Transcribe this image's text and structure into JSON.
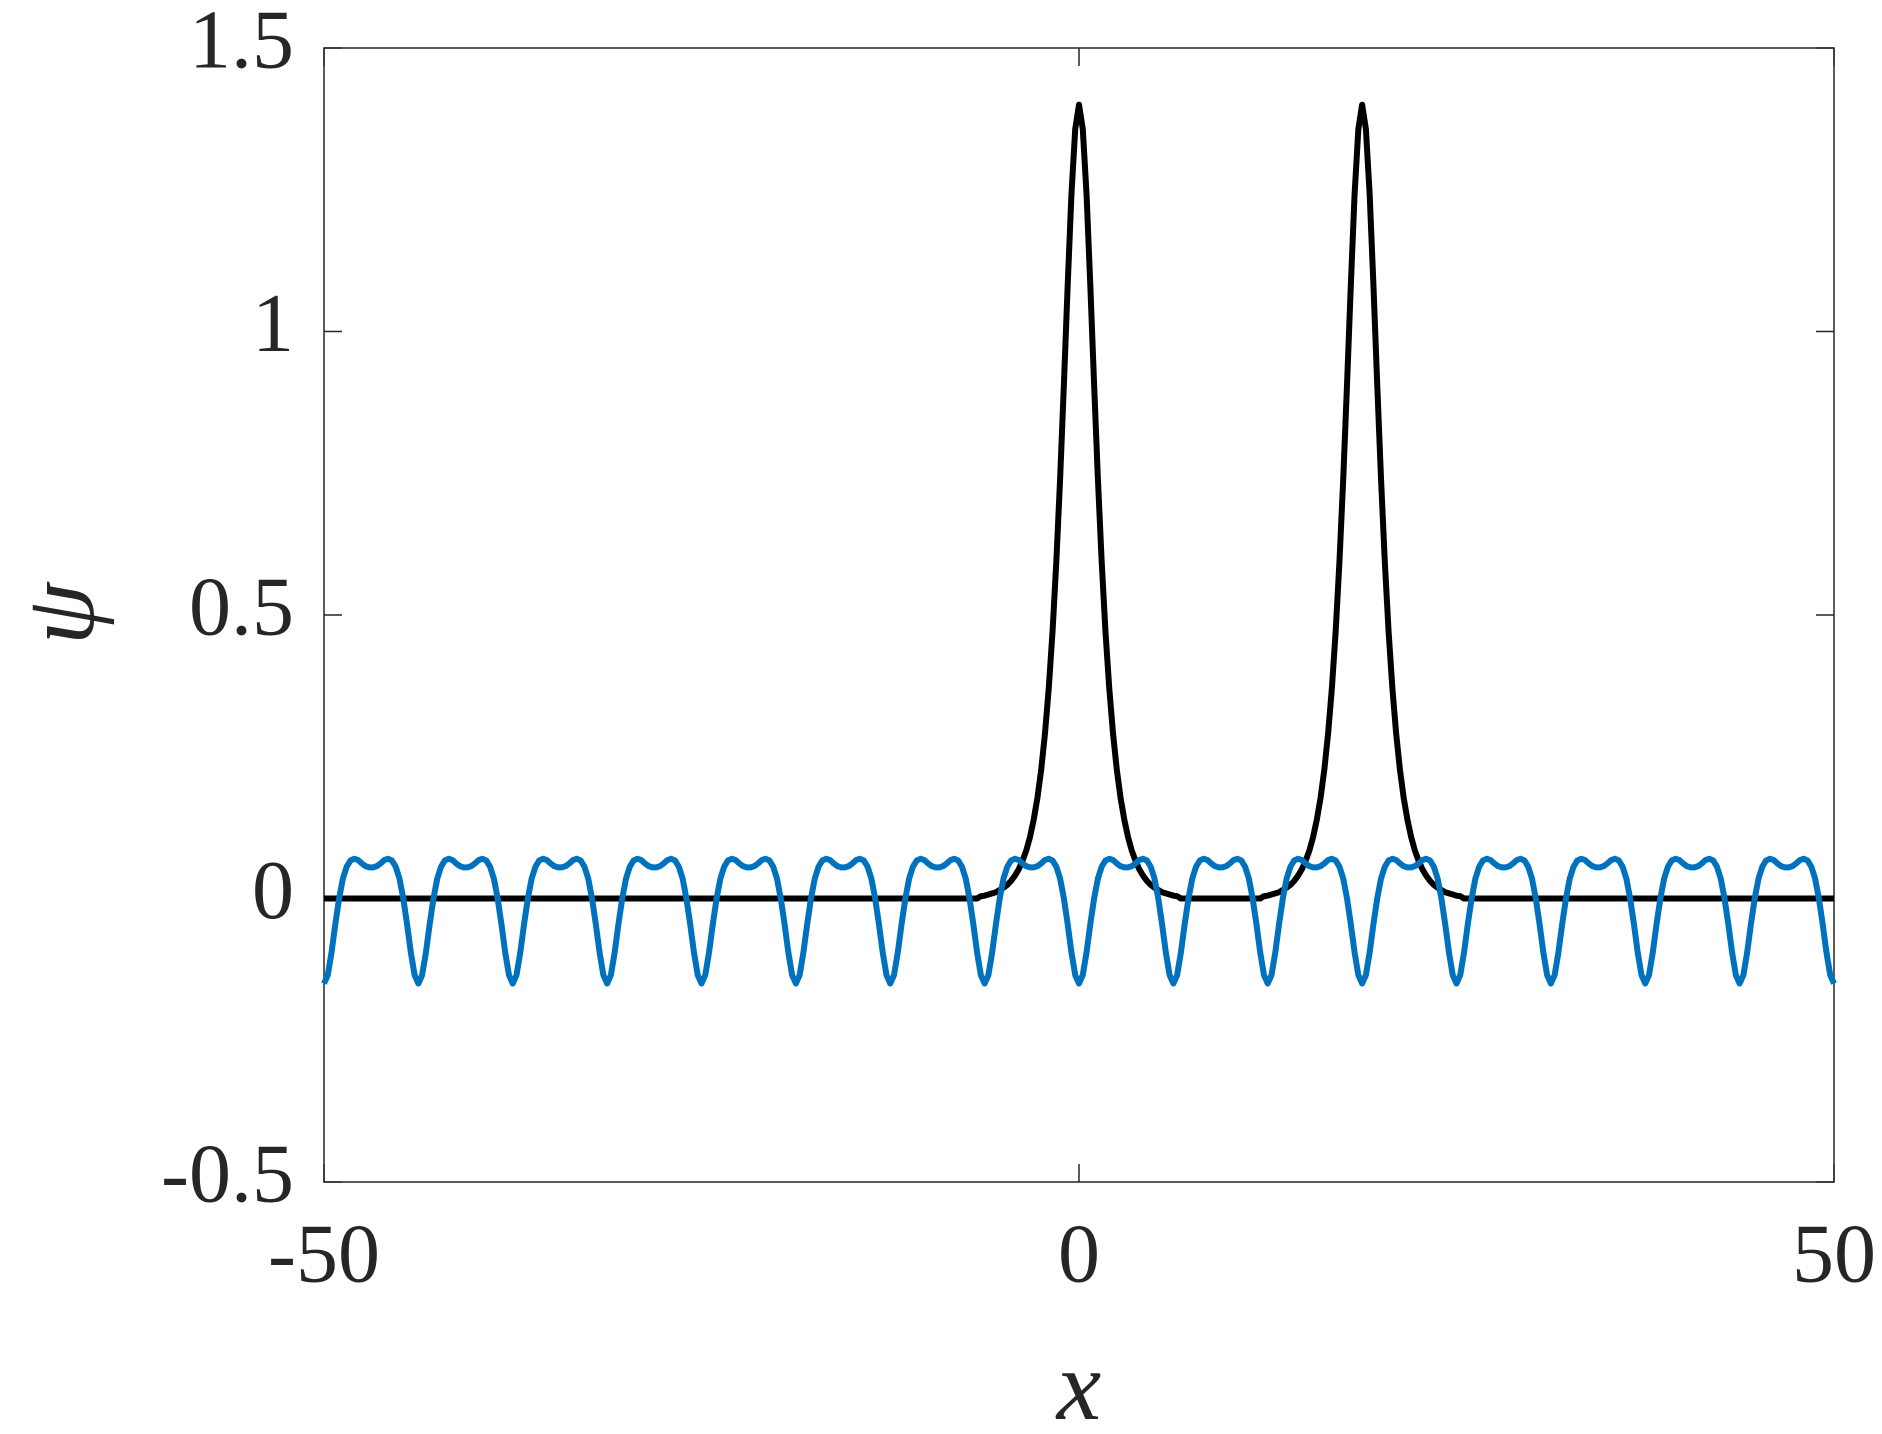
{
  "chart_data": {
    "type": "line",
    "x_label": "x",
    "y_label": "ψ",
    "xlim": [
      -50,
      50
    ],
    "ylim": [
      -0.5,
      1.5
    ],
    "xticks": [
      -50,
      0,
      50
    ],
    "yticks": [
      -0.5,
      0,
      0.5,
      1,
      1.5
    ],
    "grid": false,
    "x": [
      -50,
      -49.75,
      -49.5,
      -49.25,
      -49,
      -48.75,
      -48.5,
      -48.25,
      -48,
      -47.75,
      -47.5,
      -47.25,
      -47,
      -46.75,
      -46.5,
      -46.25,
      -46,
      -45.75,
      -45.5,
      -45.25,
      -45,
      -44.75,
      -44.5,
      -44.25,
      -44,
      -43.75,
      -43.5,
      -43.25,
      -43,
      -42.75,
      -42.5,
      -42.25,
      -42,
      -41.75,
      -41.5,
      -41.25,
      -41,
      -40.75,
      -40.5,
      -40.25,
      -40,
      -39.75,
      -39.5,
      -39.25,
      -39,
      -38.75,
      -38.5,
      -38.25,
      -38,
      -37.75,
      -37.5,
      -37.25,
      -37,
      -36.75,
      -36.5,
      -36.25,
      -36,
      -35.75,
      -35.5,
      -35.25,
      -35,
      -34.75,
      -34.5,
      -34.25,
      -34,
      -33.75,
      -33.5,
      -33.25,
      -33,
      -32.75,
      -32.5,
      -32.25,
      -32,
      -31.75,
      -31.5,
      -31.25,
      -31,
      -30.75,
      -30.5,
      -30.25,
      -30,
      -29.75,
      -29.5,
      -29.25,
      -29,
      -28.75,
      -28.5,
      -28.25,
      -28,
      -27.75,
      -27.5,
      -27.25,
      -27,
      -26.75,
      -26.5,
      -26.25,
      -26,
      -25.75,
      -25.5,
      -25.25,
      -25,
      -24.75,
      -24.5,
      -24.25,
      -24,
      -23.75,
      -23.5,
      -23.25,
      -23,
      -22.75,
      -22.5,
      -22.25,
      -22,
      -21.75,
      -21.5,
      -21.25,
      -21,
      -20.75,
      -20.5,
      -20.25,
      -20,
      -19.75,
      -19.5,
      -19.25,
      -19,
      -18.75,
      -18.5,
      -18.25,
      -18,
      -17.75,
      -17.5,
      -17.25,
      -17,
      -16.75,
      -16.5,
      -16.25,
      -16,
      -15.75,
      -15.5,
      -15.25,
      -15,
      -14.75,
      -14.5,
      -14.25,
      -14,
      -13.75,
      -13.5,
      -13.25,
      -13,
      -12.75,
      -12.5,
      -12.25,
      -12,
      -11.75,
      -11.5,
      -11.25,
      -11,
      -10.75,
      -10.5,
      -10.25,
      -10,
      -9.75,
      -9.5,
      -9.25,
      -9,
      -8.75,
      -8.5,
      -8.25,
      -8,
      -7.75,
      -7.5,
      -7.25,
      -7,
      -6.75,
      -6.5,
      -6.25,
      -6,
      -5.75,
      -5.5,
      -5.25,
      -5,
      -4.75,
      -4.5,
      -4.25,
      -4,
      -3.75,
      -3.5,
      -3.25,
      -3,
      -2.75,
      -2.5,
      -2.25,
      -2,
      -1.75,
      -1.5,
      -1.25,
      -1,
      -0.75,
      -0.5,
      -0.25,
      0,
      0.25,
      0.5,
      0.75,
      1,
      1.25,
      1.5,
      1.75,
      2,
      2.25,
      2.5,
      2.75,
      3,
      3.25,
      3.5,
      3.75,
      4,
      4.25,
      4.5,
      4.75,
      5,
      5.25,
      5.5,
      5.75,
      6,
      6.25,
      6.5,
      6.75,
      7,
      7.25,
      7.5,
      7.75,
      8,
      8.25,
      8.5,
      8.75,
      9,
      9.25,
      9.5,
      9.75,
      10,
      10.25,
      10.5,
      10.75,
      11,
      11.25,
      11.5,
      11.75,
      12,
      12.25,
      12.5,
      12.75,
      13,
      13.25,
      13.5,
      13.75,
      14,
      14.25,
      14.5,
      14.75,
      15,
      15.25,
      15.5,
      15.75,
      16,
      16.25,
      16.5,
      16.75,
      17,
      17.25,
      17.5,
      17.75,
      18,
      18.25,
      18.5,
      18.75,
      19,
      19.25,
      19.5,
      19.75,
      20,
      20.25,
      20.5,
      20.75,
      21,
      21.25,
      21.5,
      21.75,
      22,
      22.25,
      22.5,
      22.75,
      23,
      23.25,
      23.5,
      23.75,
      24,
      24.25,
      24.5,
      24.75,
      25,
      25.25,
      25.5,
      25.75,
      26,
      26.25,
      26.5,
      26.75,
      27,
      27.25,
      27.5,
      27.75,
      28,
      28.25,
      28.5,
      28.75,
      29,
      29.25,
      29.5,
      29.75,
      30,
      30.25,
      30.5,
      30.75,
      31,
      31.25,
      31.5,
      31.75,
      32,
      32.25,
      32.5,
      32.75,
      33,
      33.25,
      33.5,
      33.75,
      34,
      34.25,
      34.5,
      34.75,
      35,
      35.25,
      35.5,
      35.75,
      36,
      36.25,
      36.5,
      36.75,
      37,
      37.25,
      37.5,
      37.75,
      38,
      38.25,
      38.5,
      38.75,
      39,
      39.25,
      39.5,
      39.75,
      40,
      40.25,
      40.5,
      40.75,
      41,
      41.25,
      41.5,
      41.75,
      42,
      42.25,
      42.5,
      42.75,
      43,
      43.25,
      43.5,
      43.75,
      44,
      44.25,
      44.5,
      44.75,
      45,
      45.25,
      45.5,
      45.75,
      46,
      46.25,
      46.5,
      46.75,
      47,
      47.25,
      47.5,
      47.75,
      48,
      48.25,
      48.5,
      48.75,
      49,
      49.25,
      49.5,
      49.75,
      50
    ],
    "series": [
      {
        "color": "#000000",
        "values": [
          0,
          0,
          0,
          0,
          0,
          0,
          0,
          0,
          0,
          0,
          0,
          0,
          0,
          0,
          0,
          0,
          0,
          0,
          0,
          0,
          0,
          0,
          0,
          0,
          0,
          0,
          0,
          0,
          0,
          0,
          0,
          0,
          0,
          0,
          0,
          0,
          0,
          0,
          0,
          0,
          0,
          0,
          0,
          0,
          0,
          0,
          0,
          0,
          0,
          0,
          0,
          0,
          0,
          0,
          0,
          0,
          0,
          0,
          0,
          0,
          0,
          0,
          0,
          0,
          0,
          0,
          0,
          0,
          0,
          0,
          0,
          0,
          0,
          0,
          0,
          0,
          0,
          0,
          0,
          0,
          0,
          0,
          0,
          0,
          0,
          0,
          0,
          0,
          0,
          0,
          0,
          0,
          0,
          0,
          0,
          0,
          0,
          0,
          0,
          0,
          0,
          0,
          0,
          0,
          0,
          0,
          0,
          0,
          0,
          0,
          0,
          0,
          0,
          0,
          0,
          0,
          0,
          0,
          0,
          0,
          0,
          0,
          0,
          0,
          0,
          0,
          0,
          0,
          0,
          0,
          0,
          0,
          0,
          0,
          0,
          0,
          0,
          0,
          0,
          0,
          0,
          0,
          0,
          0,
          0,
          0,
          0,
          0,
          0,
          0,
          0,
          0,
          0,
          0,
          0,
          0,
          0,
          0,
          0,
          0,
          0,
          0,
          0,
          0,
          0,
          0,
          0,
          0,
          0,
          0,
          0,
          0,
          0,
          0,
          0.004,
          0.005,
          0.007,
          0.009,
          0.011,
          0.015,
          0.019,
          0.024,
          0.031,
          0.04,
          0.051,
          0.066,
          0.084,
          0.108,
          0.139,
          0.178,
          0.228,
          0.292,
          0.372,
          0.472,
          0.595,
          0.741,
          0.907,
          1.081,
          1.242,
          1.357,
          1.4,
          1.357,
          1.242,
          1.081,
          0.907,
          0.741,
          0.595,
          0.472,
          0.372,
          0.292,
          0.228,
          0.178,
          0.139,
          0.108,
          0.084,
          0.066,
          0.051,
          0.04,
          0.031,
          0.024,
          0.019,
          0.015,
          0.011,
          0.009,
          0.007,
          0.005,
          0.004,
          0,
          0,
          0,
          0,
          0,
          0,
          0,
          0,
          0,
          0,
          0,
          0,
          0,
          0,
          0,
          0,
          0,
          0,
          0,
          0,
          0,
          0,
          0.004,
          0.005,
          0.007,
          0.009,
          0.011,
          0.015,
          0.019,
          0.024,
          0.031,
          0.04,
          0.051,
          0.066,
          0.084,
          0.108,
          0.139,
          0.178,
          0.228,
          0.292,
          0.372,
          0.472,
          0.595,
          0.741,
          0.907,
          1.081,
          1.242,
          1.357,
          1.4,
          1.357,
          1.242,
          1.081,
          0.907,
          0.741,
          0.595,
          0.472,
          0.372,
          0.292,
          0.228,
          0.178,
          0.139,
          0.108,
          0.084,
          0.066,
          0.051,
          0.04,
          0.031,
          0.024,
          0.019,
          0.015,
          0.011,
          0.009,
          0.007,
          0.005,
          0.004,
          0,
          0,
          0,
          0,
          0,
          0,
          0,
          0,
          0,
          0,
          0,
          0,
          0,
          0,
          0,
          0,
          0,
          0,
          0,
          0,
          0,
          0,
          0,
          0,
          0,
          0,
          0,
          0,
          0,
          0,
          0,
          0,
          0,
          0,
          0,
          0,
          0,
          0,
          0,
          0,
          0,
          0,
          0,
          0,
          0,
          0,
          0,
          0,
          0,
          0,
          0,
          0,
          0,
          0,
          0,
          0,
          0,
          0,
          0,
          0,
          0,
          0,
          0,
          0,
          0,
          0,
          0,
          0,
          0,
          0,
          0,
          0,
          0,
          0,
          0,
          0,
          0,
          0,
          0,
          0,
          0,
          0,
          0,
          0,
          0,
          0,
          0,
          0,
          0,
          0,
          0,
          0,
          0,
          0,
          0,
          0,
          0,
          0,
          0
        ]
      },
      {
        "color": "#0072bd",
        "values": [
          -0.15,
          -0.135,
          -0.095,
          -0.045,
          0,
          0.035,
          0.056,
          0.067,
          0.07,
          0.068,
          0.062,
          0.057,
          0.055,
          0.055,
          0.057,
          0.062,
          0.068,
          0.07,
          0.067,
          0.056,
          0.035,
          0,
          -0.045,
          -0.095,
          -0.135,
          -0.15,
          -0.135,
          -0.095,
          -0.045,
          0,
          0.035,
          0.056,
          0.067,
          0.07,
          0.068,
          0.062,
          0.057,
          0.055,
          0.055,
          0.057,
          0.062,
          0.068,
          0.07,
          0.067,
          0.056,
          0.035,
          0,
          -0.045,
          -0.095,
          -0.135,
          -0.15,
          -0.135,
          -0.095,
          -0.045,
          0,
          0.035,
          0.056,
          0.067,
          0.07,
          0.068,
          0.062,
          0.057,
          0.055,
          0.055,
          0.057,
          0.062,
          0.068,
          0.07,
          0.067,
          0.056,
          0.035,
          0,
          -0.045,
          -0.095,
          -0.135,
          -0.15,
          -0.135,
          -0.095,
          -0.045,
          0,
          0.035,
          0.056,
          0.067,
          0.07,
          0.068,
          0.062,
          0.057,
          0.055,
          0.055,
          0.057,
          0.062,
          0.068,
          0.07,
          0.067,
          0.056,
          0.035,
          0,
          -0.045,
          -0.095,
          -0.135,
          -0.15,
          -0.135,
          -0.095,
          -0.045,
          0,
          0.035,
          0.056,
          0.067,
          0.07,
          0.068,
          0.062,
          0.057,
          0.055,
          0.055,
          0.057,
          0.062,
          0.068,
          0.07,
          0.067,
          0.056,
          0.035,
          0,
          -0.045,
          -0.095,
          -0.135,
          -0.15,
          -0.135,
          -0.095,
          -0.045,
          0,
          0.035,
          0.056,
          0.067,
          0.07,
          0.068,
          0.062,
          0.057,
          0.055,
          0.055,
          0.057,
          0.062,
          0.068,
          0.07,
          0.067,
          0.056,
          0.035,
          0,
          -0.045,
          -0.095,
          -0.135,
          -0.15,
          -0.135,
          -0.095,
          -0.045,
          0,
          0.035,
          0.056,
          0.067,
          0.07,
          0.068,
          0.062,
          0.057,
          0.055,
          0.055,
          0.057,
          0.062,
          0.068,
          0.07,
          0.067,
          0.056,
          0.035,
          0,
          -0.045,
          -0.095,
          -0.135,
          -0.15,
          -0.135,
          -0.095,
          -0.045,
          0,
          0.035,
          0.056,
          0.067,
          0.07,
          0.068,
          0.062,
          0.057,
          0.055,
          0.055,
          0.057,
          0.062,
          0.068,
          0.07,
          0.067,
          0.056,
          0.035,
          0,
          -0.045,
          -0.095,
          -0.135,
          -0.15,
          -0.135,
          -0.095,
          -0.045,
          0,
          0.035,
          0.056,
          0.067,
          0.07,
          0.068,
          0.062,
          0.057,
          0.055,
          0.055,
          0.057,
          0.062,
          0.068,
          0.07,
          0.067,
          0.056,
          0.035,
          0,
          -0.045,
          -0.095,
          -0.135,
          -0.15,
          -0.135,
          -0.095,
          -0.045,
          0,
          0.035,
          0.056,
          0.067,
          0.07,
          0.068,
          0.062,
          0.057,
          0.055,
          0.055,
          0.057,
          0.062,
          0.068,
          0.07,
          0.067,
          0.056,
          0.035,
          0,
          -0.045,
          -0.095,
          -0.135,
          -0.15,
          -0.135,
          -0.095,
          -0.045,
          0,
          0.035,
          0.056,
          0.067,
          0.07,
          0.068,
          0.062,
          0.057,
          0.055,
          0.055,
          0.057,
          0.062,
          0.068,
          0.07,
          0.067,
          0.056,
          0.035,
          0,
          -0.045,
          -0.095,
          -0.135,
          -0.15,
          -0.135,
          -0.095,
          -0.045,
          0,
          0.035,
          0.056,
          0.067,
          0.07,
          0.068,
          0.062,
          0.057,
          0.055,
          0.055,
          0.057,
          0.062,
          0.068,
          0.07,
          0.067,
          0.056,
          0.035,
          0,
          -0.045,
          -0.095,
          -0.135,
          -0.15,
          -0.135,
          -0.095,
          -0.045,
          0,
          0.035,
          0.056,
          0.067,
          0.07,
          0.068,
          0.062,
          0.057,
          0.055,
          0.055,
          0.057,
          0.062,
          0.068,
          0.07,
          0.067,
          0.056,
          0.035,
          0,
          -0.045,
          -0.095,
          -0.135,
          -0.15,
          -0.135,
          -0.095,
          -0.045,
          0,
          0.035,
          0.056,
          0.067,
          0.07,
          0.068,
          0.062,
          0.057,
          0.055,
          0.055,
          0.057,
          0.062,
          0.068,
          0.07,
          0.067,
          0.056,
          0.035,
          0,
          -0.045,
          -0.095,
          -0.135,
          -0.15,
          -0.135,
          -0.095,
          -0.045,
          0,
          0.035,
          0.056,
          0.067,
          0.07,
          0.068,
          0.062,
          0.057,
          0.055,
          0.055,
          0.057,
          0.062,
          0.068,
          0.07,
          0.067,
          0.056,
          0.035,
          0,
          -0.045,
          -0.095,
          -0.135,
          -0.15,
          -0.135,
          -0.095,
          -0.045,
          0,
          0.035,
          0.056,
          0.067,
          0.07,
          0.068,
          0.062,
          0.057,
          0.055,
          0.055,
          0.057,
          0.062,
          0.068,
          0.07,
          0.067,
          0.056,
          0.035,
          0,
          -0.045,
          -0.095,
          -0.135,
          -0.15
        ]
      }
    ]
  }
}
